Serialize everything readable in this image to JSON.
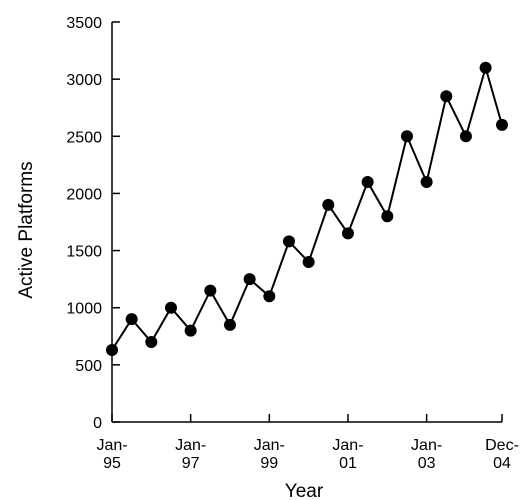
{
  "chart_data": {
    "type": "line",
    "xlabel": "Year",
    "ylabel": "Active Platforms",
    "ylim": [
      0,
      3500
    ],
    "yticks": [
      0,
      500,
      1000,
      1500,
      2000,
      2500,
      3000,
      3500
    ],
    "xlim": [
      "1995-01",
      "2004-12"
    ],
    "xticks": [
      {
        "date": "1995-01",
        "line1": "Jan-",
        "line2": "95"
      },
      {
        "date": "1997-01",
        "line1": "Jan-",
        "line2": "97"
      },
      {
        "date": "1999-01",
        "line1": "Jan-",
        "line2": "99"
      },
      {
        "date": "2001-01",
        "line1": "Jan-",
        "line2": "01"
      },
      {
        "date": "2003-01",
        "line1": "Jan-",
        "line2": "03"
      },
      {
        "date": "2004-12",
        "line1": "Dec-",
        "line2": "04"
      }
    ],
    "grid": false,
    "legend": "none",
    "series": [
      {
        "color": "#000000",
        "marker": "circle",
        "x": [
          "1995-01",
          "1995-07",
          "1996-01",
          "1996-07",
          "1997-01",
          "1997-07",
          "1998-01",
          "1998-07",
          "1999-01",
          "1999-07",
          "2000-01",
          "2000-07",
          "2001-01",
          "2001-07",
          "2002-01",
          "2002-07",
          "2003-01",
          "2003-07",
          "2004-01",
          "2004-07",
          "2004-12"
        ],
        "y": [
          630,
          900,
          700,
          1000,
          800,
          1150,
          850,
          1250,
          1100,
          1580,
          1400,
          1900,
          1650,
          2100,
          1800,
          2500,
          2100,
          2850,
          2500,
          3100,
          2600
        ]
      }
    ]
  }
}
